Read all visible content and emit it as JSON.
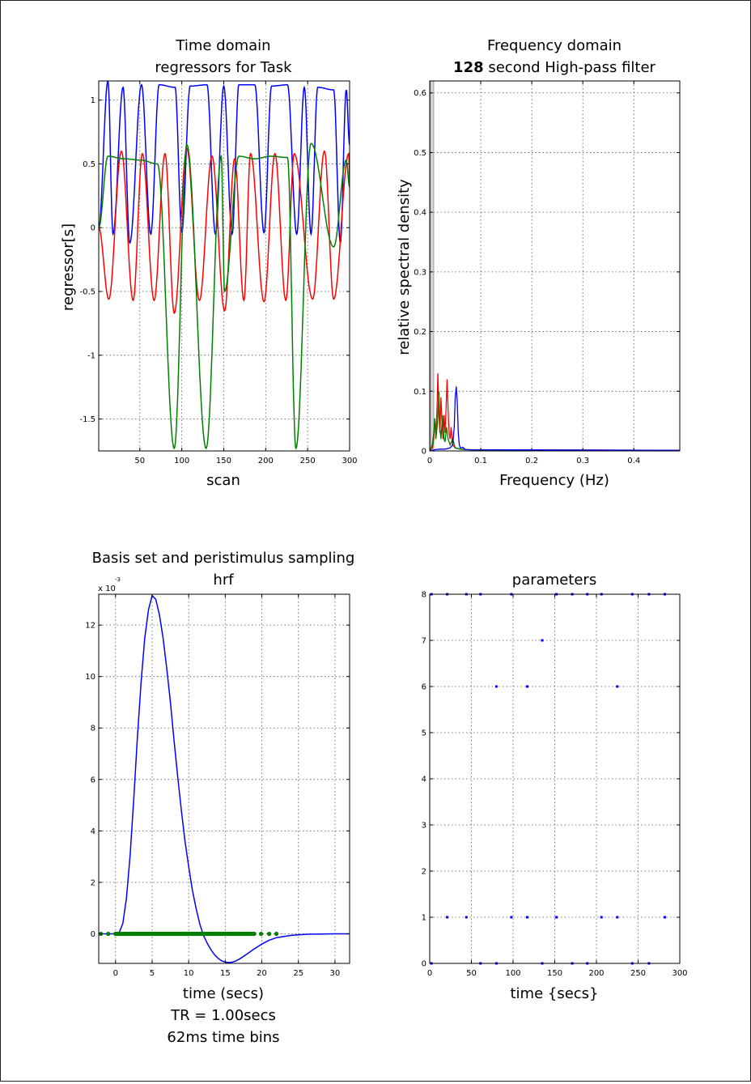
{
  "chart_data": [
    {
      "type": "line",
      "title": [
        "Time domain",
        "regressors for Task"
      ],
      "xlabel": "scan",
      "ylabel": "regressor[s]",
      "xlim": [
        1,
        300
      ],
      "ylim": [
        -1.75,
        1.15
      ],
      "xticks": [
        50,
        100,
        150,
        200,
        250,
        300
      ],
      "yticks": [
        1,
        0.5,
        0,
        -0.5,
        -1,
        -1.5
      ],
      "xtick_labels": [
        "50",
        "100",
        "150",
        "200",
        "250",
        "300"
      ],
      "ytick_labels": [
        "1",
        "0.5",
        "0",
        "-0.5",
        "-1",
        "-1.5"
      ],
      "grid": true,
      "series": [
        {
          "color": "#0000ff",
          "peaks": [
            [
              12,
              1.15
            ],
            [
              30,
              1.1
            ],
            [
              52,
              1.12
            ],
            [
              73,
              1.12
            ],
            [
              92,
              1.1
            ],
            [
              110,
              1.11
            ],
            [
              130,
              1.12
            ],
            [
              150,
              1.11
            ],
            [
              168,
              1.12
            ],
            [
              187,
              1.12
            ],
            [
              207,
              1.11
            ],
            [
              226,
              1.12
            ],
            [
              246,
              1.1
            ],
            [
              262,
              1.1
            ],
            [
              281,
              1.08
            ],
            [
              296,
              1.08
            ]
          ],
          "troughs": [
            [
              18,
              -0.05
            ],
            [
              38,
              -0.12
            ],
            [
              63,
              -0.05
            ],
            [
              100,
              -0.03
            ],
            [
              140,
              -0.05
            ],
            [
              160,
              -0.05
            ],
            [
              198,
              -0.04
            ],
            [
              237,
              -0.05
            ],
            [
              254,
              -0.05
            ],
            [
              289,
              -0.12
            ]
          ]
        },
        {
          "color": "#ff0000",
          "peaks": [
            [
              28,
              0.6
            ],
            [
              53,
              0.58
            ],
            [
              80,
              0.58
            ],
            [
              106,
              0.62
            ],
            [
              136,
              0.56
            ],
            [
              163,
              0.54
            ],
            [
              182,
              0.58
            ],
            [
              211,
              0.58
            ],
            [
              234,
              0.58
            ],
            [
              270,
              0.6
            ],
            [
              299,
              0.58
            ]
          ],
          "troughs": [
            [
              13,
              -0.56
            ],
            [
              42,
              -0.57
            ],
            [
              67,
              -0.57
            ],
            [
              91,
              -0.67
            ],
            [
              121,
              -0.57
            ],
            [
              151,
              -0.65
            ],
            [
              174,
              -0.57
            ],
            [
              198,
              -0.58
            ],
            [
              224,
              -0.57
            ],
            [
              256,
              -0.56
            ],
            [
              281,
              -0.56
            ]
          ]
        },
        {
          "color": "#008000",
          "peaks": [
            [
              12,
              0.56
            ],
            [
              31,
              0.54
            ],
            [
              51,
              0.53
            ],
            [
              71,
              0.5
            ],
            [
              106,
              0.65
            ],
            [
              147,
              0.56
            ],
            [
              168,
              0.56
            ],
            [
              187,
              0.54
            ],
            [
              206,
              0.56
            ],
            [
              226,
              0.55
            ],
            [
              254,
              0.66
            ],
            [
              296,
              0.53
            ]
          ],
          "troughs": [
            [
              91,
              -1.73
            ],
            [
              129,
              -1.73
            ],
            [
              151,
              -0.5
            ],
            [
              236,
              -1.73
            ],
            [
              281,
              -0.15
            ]
          ]
        }
      ]
    },
    {
      "type": "line",
      "title": [
        "Frequency domain",
        "128 second High-pass filter"
      ],
      "title_bold_part": "128",
      "xlabel": "Frequency (Hz)",
      "ylabel": "relative spectral density",
      "xlim": [
        0,
        0.49
      ],
      "ylim": [
        0,
        0.62
      ],
      "xticks": [
        0,
        0.1,
        0.2,
        0.3,
        0.4
      ],
      "yticks": [
        0,
        0.1,
        0.2,
        0.3,
        0.4,
        0.5,
        0.6
      ],
      "xtick_labels": [
        "0",
        "0.1",
        "0.2",
        "0.3",
        "0.4"
      ],
      "ytick_labels": [
        "0",
        "0.1",
        "0.2",
        "0.3",
        "0.4",
        "0.5",
        "0.6"
      ],
      "grid": true,
      "filter_cutoff_hz": 0.0078,
      "series": [
        {
          "color": "#ff0000",
          "x": [
            0,
            0.005,
            0.008,
            0.01,
            0.012,
            0.014,
            0.016,
            0.018,
            0.02,
            0.022,
            0.024,
            0.026,
            0.028,
            0.03,
            0.032,
            0.034,
            0.036,
            0.038,
            0.04,
            0.042,
            0.045,
            0.05,
            0.06,
            0.08,
            0.1,
            0.49
          ],
          "y": [
            0,
            0.005,
            0.02,
            0.05,
            0.03,
            0.06,
            0.13,
            0.06,
            0.03,
            0.09,
            0.05,
            0.02,
            0.06,
            0.03,
            0.07,
            0.12,
            0.07,
            0.03,
            0.02,
            0.04,
            0.01,
            0.005,
            0.003,
            0.002,
            0.002,
            0.001
          ]
        },
        {
          "color": "#008000",
          "x": [
            0,
            0.005,
            0.008,
            0.01,
            0.012,
            0.015,
            0.018,
            0.02,
            0.022,
            0.025,
            0.028,
            0.03,
            0.033,
            0.036,
            0.04,
            0.045,
            0.05,
            0.06,
            0.1,
            0.49
          ],
          "y": [
            0,
            0.01,
            0.03,
            0.055,
            0.02,
            0.045,
            0.1,
            0.04,
            0.02,
            0.06,
            0.02,
            0.015,
            0.04,
            0.02,
            0.01,
            0.02,
            0.005,
            0.003,
            0.001,
            0.001
          ]
        },
        {
          "color": "#0000ff",
          "x": [
            0,
            0.01,
            0.02,
            0.03,
            0.04,
            0.045,
            0.048,
            0.05,
            0.052,
            0.054,
            0.056,
            0.058,
            0.06,
            0.065,
            0.07,
            0.49
          ],
          "y": [
            0,
            0.002,
            0.003,
            0.003,
            0.005,
            0.01,
            0.04,
            0.09,
            0.108,
            0.08,
            0.03,
            0.01,
            0.005,
            0.006,
            0.002,
            0.001
          ]
        }
      ]
    },
    {
      "type": "line",
      "title": [
        "Basis set and peristimulus sampling",
        "hrf"
      ],
      "xlabel_lines": [
        "time (secs)",
        "TR = 1.00secs",
        "62ms time bins"
      ],
      "exponent_label": "x 10",
      "exponent": "-3",
      "xlim": [
        -2.3,
        32
      ],
      "ylim": [
        -1.15,
        13.2
      ],
      "xticks": [
        0,
        5,
        10,
        15,
        20,
        25,
        30
      ],
      "yticks": [
        0,
        2,
        4,
        6,
        8,
        10,
        12
      ],
      "xtick_labels": [
        "0",
        "5",
        "10",
        "15",
        "20",
        "25",
        "30"
      ],
      "ytick_labels": [
        "0",
        "2",
        "4",
        "6",
        "8",
        "10",
        "12"
      ],
      "grid": true,
      "series": [
        {
          "name": "hrf",
          "color": "#0000ff",
          "x": [
            -2.3,
            0,
            0.5,
            1,
            1.5,
            2,
            2.5,
            3,
            3.5,
            4,
            4.5,
            5,
            5.5,
            6,
            6.5,
            7,
            7.5,
            8,
            8.5,
            9,
            9.5,
            10,
            10.5,
            11,
            11.5,
            12,
            12.5,
            13,
            13.5,
            14,
            14.5,
            15,
            15.5,
            16,
            16.5,
            17,
            18,
            19,
            20,
            21,
            22,
            24,
            26,
            28,
            30,
            32
          ],
          "y": [
            0,
            0,
            0.05,
            0.4,
            1.4,
            3.1,
            5.3,
            7.7,
            9.8,
            11.5,
            12.6,
            13.15,
            13.0,
            12.4,
            11.5,
            10.3,
            9.0,
            7.5,
            6.1,
            4.8,
            3.6,
            2.6,
            1.7,
            1.0,
            0.4,
            -0.05,
            -0.35,
            -0.6,
            -0.8,
            -0.95,
            -1.05,
            -1.1,
            -1.12,
            -1.1,
            -1.05,
            -0.97,
            -0.78,
            -0.58,
            -0.4,
            -0.25,
            -0.15,
            -0.06,
            -0.02,
            -0.01,
            0,
            0
          ]
        },
        {
          "name": "samples",
          "color": "#008000",
          "x_range": [
            -2.0,
            22.0
          ]
        }
      ]
    },
    {
      "type": "scatter",
      "title": [
        "parameters"
      ],
      "xlabel": "time {secs}",
      "xlim": [
        0,
        300
      ],
      "ylim": [
        0,
        8
      ],
      "xticks": [
        0,
        50,
        100,
        150,
        200,
        250,
        300
      ],
      "yticks": [
        0,
        1,
        2,
        3,
        4,
        5,
        6,
        7,
        8
      ],
      "xtick_labels": [
        "0",
        "50",
        "100",
        "150",
        "200",
        "250",
        "300"
      ],
      "ytick_labels": [
        "0",
        "1",
        "2",
        "3",
        "4",
        "5",
        "6",
        "7",
        "8"
      ],
      "grid": true,
      "series": [
        {
          "color": "#0000ff",
          "points": [
            [
              2,
              8
            ],
            [
              21,
              8
            ],
            [
              44,
              8
            ],
            [
              61,
              8
            ],
            [
              98,
              8
            ],
            [
              152,
              8
            ],
            [
              171,
              8
            ],
            [
              189,
              8
            ],
            [
              206,
              8
            ],
            [
              243,
              8
            ],
            [
              263,
              8
            ],
            [
              282,
              8
            ],
            [
              135,
              7
            ],
            [
              80,
              6
            ],
            [
              117,
              6
            ],
            [
              225,
              6
            ],
            [
              21,
              1
            ],
            [
              44,
              1
            ],
            [
              98,
              1
            ],
            [
              117,
              1
            ],
            [
              152,
              1
            ],
            [
              206,
              1
            ],
            [
              225,
              1
            ],
            [
              282,
              1
            ],
            [
              2,
              0
            ],
            [
              61,
              0
            ],
            [
              80,
              0
            ],
            [
              135,
              0
            ],
            [
              171,
              0
            ],
            [
              189,
              0
            ],
            [
              243,
              0
            ],
            [
              263,
              0
            ]
          ]
        }
      ]
    }
  ]
}
